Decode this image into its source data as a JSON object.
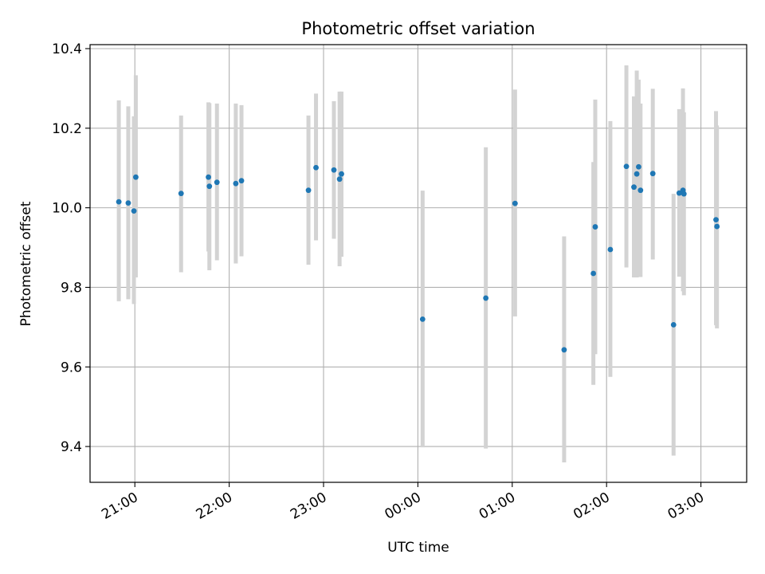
{
  "chart_data": {
    "type": "scatter",
    "title": "Photometric offset variation",
    "xlabel": "UTC time",
    "ylabel": "Photometric offset",
    "x_unit": "hours after 20:00 UTC",
    "xlim": [
      0.525,
      7.485
    ],
    "ylim": [
      9.31,
      10.41
    ],
    "xticks": [
      {
        "value": 1,
        "label": "21:00"
      },
      {
        "value": 2,
        "label": "22:00"
      },
      {
        "value": 3,
        "label": "23:00"
      },
      {
        "value": 4,
        "label": "00:00"
      },
      {
        "value": 5,
        "label": "01:00"
      },
      {
        "value": 6,
        "label": "02:00"
      },
      {
        "value": 7,
        "label": "03:00"
      }
    ],
    "yticks": [
      {
        "value": 9.4,
        "label": "9.4"
      },
      {
        "value": 9.6,
        "label": "9.6"
      },
      {
        "value": 9.8,
        "label": "9.8"
      },
      {
        "value": 10.0,
        "label": "10.0"
      },
      {
        "value": 10.2,
        "label": "10.2"
      },
      {
        "value": 10.4,
        "label": "10.4"
      }
    ],
    "grid": true,
    "point_color": "#1f77b4",
    "errorbar_color": "#d3d3d3",
    "series": [
      {
        "name": "offset",
        "points": [
          {
            "x": 0.83,
            "y": 10.015,
            "lo": 9.765,
            "hi": 10.27
          },
          {
            "x": 0.93,
            "y": 10.012,
            "lo": 9.77,
            "hi": 10.255
          },
          {
            "x": 0.99,
            "y": 9.992,
            "lo": 9.758,
            "hi": 10.23
          },
          {
            "x": 1.01,
            "y": 10.077,
            "lo": 9.825,
            "hi": 10.333
          },
          {
            "x": 1.49,
            "y": 10.036,
            "lo": 9.838,
            "hi": 10.232
          },
          {
            "x": 1.78,
            "y": 10.077,
            "lo": 9.89,
            "hi": 10.265
          },
          {
            "x": 1.79,
            "y": 10.054,
            "lo": 9.843,
            "hi": 10.263
          },
          {
            "x": 1.87,
            "y": 10.064,
            "lo": 9.868,
            "hi": 10.262
          },
          {
            "x": 2.07,
            "y": 10.061,
            "lo": 9.86,
            "hi": 10.262
          },
          {
            "x": 2.13,
            "y": 10.068,
            "lo": 9.878,
            "hi": 10.258
          },
          {
            "x": 2.84,
            "y": 10.044,
            "lo": 9.857,
            "hi": 10.232
          },
          {
            "x": 2.92,
            "y": 10.101,
            "lo": 9.918,
            "hi": 10.287
          },
          {
            "x": 3.11,
            "y": 10.095,
            "lo": 9.922,
            "hi": 10.268
          },
          {
            "x": 3.17,
            "y": 10.072,
            "lo": 9.853,
            "hi": 10.292
          },
          {
            "x": 3.19,
            "y": 10.085,
            "lo": 9.877,
            "hi": 10.292
          },
          {
            "x": 4.05,
            "y": 9.72,
            "lo": 9.398,
            "hi": 10.043
          },
          {
            "x": 4.72,
            "y": 9.773,
            "lo": 9.395,
            "hi": 10.152
          },
          {
            "x": 5.03,
            "y": 10.011,
            "lo": 9.727,
            "hi": 10.297
          },
          {
            "x": 5.55,
            "y": 9.643,
            "lo": 9.36,
            "hi": 9.928
          },
          {
            "x": 5.86,
            "y": 9.835,
            "lo": 9.555,
            "hi": 10.115
          },
          {
            "x": 5.88,
            "y": 9.952,
            "lo": 9.632,
            "hi": 10.272
          },
          {
            "x": 6.04,
            "y": 9.895,
            "lo": 9.575,
            "hi": 10.218
          },
          {
            "x": 6.21,
            "y": 10.104,
            "lo": 9.85,
            "hi": 10.358
          },
          {
            "x": 6.29,
            "y": 10.052,
            "lo": 9.825,
            "hi": 10.28
          },
          {
            "x": 6.32,
            "y": 10.085,
            "lo": 9.825,
            "hi": 10.345
          },
          {
            "x": 6.34,
            "y": 10.103,
            "lo": 9.835,
            "hi": 10.322
          },
          {
            "x": 6.36,
            "y": 10.044,
            "lo": 9.826,
            "hi": 10.262
          },
          {
            "x": 6.49,
            "y": 10.086,
            "lo": 9.87,
            "hi": 10.299
          },
          {
            "x": 6.71,
            "y": 9.706,
            "lo": 9.377,
            "hi": 10.035
          },
          {
            "x": 6.77,
            "y": 10.037,
            "lo": 9.827,
            "hi": 10.248
          },
          {
            "x": 6.81,
            "y": 10.044,
            "lo": 9.79,
            "hi": 10.3
          },
          {
            "x": 6.82,
            "y": 10.035,
            "lo": 9.78,
            "hi": 10.24
          },
          {
            "x": 7.16,
            "y": 9.97,
            "lo": 9.705,
            "hi": 10.243
          },
          {
            "x": 7.17,
            "y": 9.953,
            "lo": 9.697,
            "hi": 10.207
          }
        ]
      }
    ]
  }
}
